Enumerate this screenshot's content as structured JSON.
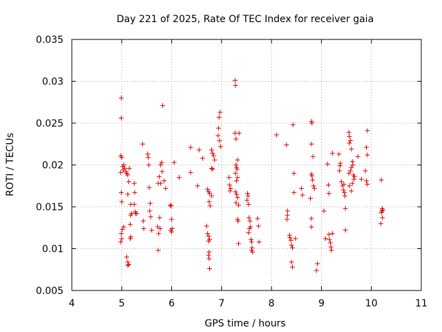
{
  "chart_data": {
    "type": "scatter",
    "title": "Day 221 of 2025, Rate Of TEC Index for receiver gaia",
    "xlabel": "GPS time / hours",
    "ylabel": "ROTI / TECUs",
    "xlim": [
      4,
      11
    ],
    "ylim": [
      0.005,
      0.035
    ],
    "xticks": [
      "4",
      "5",
      "6",
      "7",
      "8",
      "9",
      "10",
      "11"
    ],
    "yticks": [
      "0.005",
      "0.01",
      "0.015",
      "0.02",
      "0.025",
      "0.03",
      "0.035"
    ],
    "grid": true,
    "marker": "+",
    "color": "#e00000",
    "grid_color": "#a0a0a0",
    "points": [
      [
        4.99,
        0.028
      ],
      [
        4.99,
        0.0256
      ],
      [
        4.98,
        0.0211
      ],
      [
        5.0,
        0.0209
      ],
      [
        5.02,
        0.0198
      ],
      [
        5.04,
        0.02
      ],
      [
        5.06,
        0.0196
      ],
      [
        5.03,
        0.0194
      ],
      [
        5.08,
        0.0192
      ],
      [
        5.1,
        0.019
      ],
      [
        4.98,
        0.0191
      ],
      [
        5.12,
        0.0188
      ],
      [
        4.99,
        0.0167
      ],
      [
        5.0,
        0.0156
      ],
      [
        5.04,
        0.0126
      ],
      [
        5.01,
        0.0123
      ],
      [
        4.99,
        0.0118
      ],
      [
        5.0,
        0.0112
      ],
      [
        4.98,
        0.0108
      ],
      [
        5.1,
        0.009
      ],
      [
        5.12,
        0.0084
      ],
      [
        5.14,
        0.0081
      ],
      [
        5.12,
        0.008
      ],
      [
        5.15,
        0.0196
      ],
      [
        5.14,
        0.018
      ],
      [
        5.12,
        0.0165
      ],
      [
        5.18,
        0.0153
      ],
      [
        5.2,
        0.0142
      ],
      [
        5.18,
        0.014
      ],
      [
        5.17,
        0.0129
      ],
      [
        5.18,
        0.0114
      ],
      [
        5.17,
        0.0112
      ],
      [
        5.25,
        0.0178
      ],
      [
        5.26,
        0.0167
      ],
      [
        5.25,
        0.0153
      ],
      [
        5.27,
        0.0144
      ],
      [
        5.28,
        0.0142
      ],
      [
        5.3,
        0.0142
      ],
      [
        5.42,
        0.0225
      ],
      [
        5.52,
        0.0213
      ],
      [
        5.53,
        0.0209
      ],
      [
        5.54,
        0.02
      ],
      [
        5.55,
        0.0173
      ],
      [
        5.57,
        0.0154
      ],
      [
        5.56,
        0.0145
      ],
      [
        5.58,
        0.0138
      ],
      [
        5.6,
        0.0122
      ],
      [
        5.43,
        0.0133
      ],
      [
        5.44,
        0.0124
      ],
      [
        5.82,
        0.0271
      ],
      [
        5.8,
        0.0203
      ],
      [
        5.78,
        0.02
      ],
      [
        5.81,
        0.0192
      ],
      [
        5.75,
        0.0186
      ],
      [
        5.85,
        0.0181
      ],
      [
        5.78,
        0.0178
      ],
      [
        5.73,
        0.0178
      ],
      [
        5.88,
        0.0172
      ],
      [
        5.76,
        0.0137
      ],
      [
        5.72,
        0.0126
      ],
      [
        5.77,
        0.0124
      ],
      [
        5.74,
        0.0118
      ],
      [
        5.73,
        0.0098
      ],
      [
        5.97,
        0.0152
      ],
      [
        5.99,
        0.0151
      ],
      [
        6.0,
        0.0135
      ],
      [
        6.01,
        0.0124
      ],
      [
        5.98,
        0.0122
      ],
      [
        6.0,
        0.012
      ],
      [
        6.05,
        0.0203
      ],
      [
        6.15,
        0.0185
      ],
      [
        6.38,
        0.0221
      ],
      [
        6.55,
        0.0218
      ],
      [
        6.38,
        0.0191
      ],
      [
        6.52,
        0.0175
      ],
      [
        6.62,
        0.0208
      ],
      [
        6.8,
        0.0218
      ],
      [
        6.82,
        0.0214
      ],
      [
        6.84,
        0.0211
      ],
      [
        6.86,
        0.0206
      ],
      [
        6.8,
        0.0196
      ],
      [
        6.82,
        0.0195
      ],
      [
        6.72,
        0.0171
      ],
      [
        6.74,
        0.0168
      ],
      [
        6.76,
        0.0166
      ],
      [
        6.8,
        0.0163
      ],
      [
        6.75,
        0.0156
      ],
      [
        6.77,
        0.0151
      ],
      [
        6.7,
        0.0127
      ],
      [
        6.72,
        0.0118
      ],
      [
        6.74,
        0.0115
      ],
      [
        6.76,
        0.0111
      ],
      [
        6.74,
        0.0109
      ],
      [
        6.75,
        0.0096
      ],
      [
        6.74,
        0.0092
      ],
      [
        6.75,
        0.0088
      ],
      [
        6.76,
        0.0076
      ],
      [
        6.97,
        0.0263
      ],
      [
        6.95,
        0.0257
      ],
      [
        6.94,
        0.0244
      ],
      [
        6.93,
        0.0235
      ],
      [
        6.96,
        0.0229
      ],
      [
        6.98,
        0.0222
      ],
      [
        7.27,
        0.0301
      ],
      [
        7.28,
        0.0295
      ],
      [
        7.27,
        0.0238
      ],
      [
        7.35,
        0.0238
      ],
      [
        7.29,
        0.0231
      ],
      [
        7.32,
        0.0206
      ],
      [
        7.29,
        0.02
      ],
      [
        7.3,
        0.0197
      ],
      [
        7.31,
        0.0195
      ],
      [
        7.28,
        0.019
      ],
      [
        7.32,
        0.0185
      ],
      [
        7.3,
        0.0181
      ],
      [
        7.15,
        0.0185
      ],
      [
        7.16,
        0.0176
      ],
      [
        7.18,
        0.0172
      ],
      [
        7.17,
        0.0169
      ],
      [
        7.28,
        0.0168
      ],
      [
        7.3,
        0.0165
      ],
      [
        7.32,
        0.0161
      ],
      [
        7.29,
        0.0155
      ],
      [
        7.34,
        0.0152
      ],
      [
        7.32,
        0.0135
      ],
      [
        7.33,
        0.0133
      ],
      [
        7.34,
        0.0106
      ],
      [
        7.52,
        0.0166
      ],
      [
        7.53,
        0.0163
      ],
      [
        7.51,
        0.0158
      ],
      [
        7.54,
        0.0153
      ],
      [
        7.55,
        0.0137
      ],
      [
        7.57,
        0.0133
      ],
      [
        7.58,
        0.0126
      ],
      [
        7.56,
        0.0124
      ],
      [
        7.54,
        0.0119
      ],
      [
        7.59,
        0.0111
      ],
      [
        7.6,
        0.0108
      ],
      [
        7.61,
        0.0101
      ],
      [
        7.6,
        0.0098
      ],
      [
        7.62,
        0.0096
      ],
      [
        7.72,
        0.0136
      ],
      [
        7.74,
        0.0127
      ],
      [
        7.75,
        0.0108
      ],
      [
        8.1,
        0.0236
      ],
      [
        8.3,
        0.0224
      ],
      [
        8.43,
        0.0248
      ],
      [
        8.45,
        0.019
      ],
      [
        8.45,
        0.0167
      ],
      [
        8.6,
        0.0172
      ],
      [
        8.62,
        0.0164
      ],
      [
        8.32,
        0.0145
      ],
      [
        8.32,
        0.014
      ],
      [
        8.31,
        0.0135
      ],
      [
        8.36,
        0.0116
      ],
      [
        8.37,
        0.0113
      ],
      [
        8.39,
        0.011
      ],
      [
        8.4,
        0.0104
      ],
      [
        8.42,
        0.0101
      ],
      [
        8.48,
        0.0112
      ],
      [
        8.4,
        0.0084
      ],
      [
        8.42,
        0.0078
      ],
      [
        8.8,
        0.0252
      ],
      [
        8.81,
        0.025
      ],
      [
        8.8,
        0.0225
      ],
      [
        8.83,
        0.021
      ],
      [
        8.8,
        0.0189
      ],
      [
        8.81,
        0.0187
      ],
      [
        8.82,
        0.0182
      ],
      [
        8.84,
        0.0175
      ],
      [
        8.86,
        0.0172
      ],
      [
        8.78,
        0.016
      ],
      [
        8.8,
        0.0136
      ],
      [
        8.8,
        0.0126
      ],
      [
        8.92,
        0.0082
      ],
      [
        8.9,
        0.0074
      ],
      [
        9.12,
        0.0201
      ],
      [
        9.14,
        0.0176
      ],
      [
        9.15,
        0.0166
      ],
      [
        9.05,
        0.0145
      ],
      [
        9.08,
        0.0112
      ],
      [
        9.15,
        0.0117
      ],
      [
        9.16,
        0.0111
      ],
      [
        9.18,
        0.0107
      ],
      [
        9.19,
        0.0102
      ],
      [
        9.2,
        0.0098
      ],
      [
        9.22,
        0.0118
      ],
      [
        9.22,
        0.0214
      ],
      [
        9.35,
        0.0213
      ],
      [
        9.38,
        0.0202
      ],
      [
        9.37,
        0.0199
      ],
      [
        9.36,
        0.0193
      ],
      [
        9.4,
        0.018
      ],
      [
        9.45,
        0.0177
      ],
      [
        9.42,
        0.0175
      ],
      [
        9.44,
        0.017
      ],
      [
        9.46,
        0.0167
      ],
      [
        9.47,
        0.0163
      ],
      [
        9.48,
        0.0148
      ],
      [
        9.48,
        0.0122
      ],
      [
        9.55,
        0.0239
      ],
      [
        9.56,
        0.0234
      ],
      [
        9.58,
        0.0229
      ],
      [
        9.56,
        0.0226
      ],
      [
        9.6,
        0.0219
      ],
      [
        9.62,
        0.0204
      ],
      [
        9.63,
        0.02
      ],
      [
        9.6,
        0.0197
      ],
      [
        9.58,
        0.0193
      ],
      [
        9.55,
        0.019
      ],
      [
        9.64,
        0.0188
      ],
      [
        9.66,
        0.0186
      ],
      [
        9.65,
        0.0183
      ],
      [
        9.62,
        0.0178
      ],
      [
        9.56,
        0.0175
      ],
      [
        9.6,
        0.0169
      ],
      [
        9.73,
        0.021
      ],
      [
        9.92,
        0.0241
      ],
      [
        9.9,
        0.0221
      ],
      [
        9.92,
        0.0212
      ],
      [
        9.88,
        0.0193
      ],
      [
        9.9,
        0.0181
      ],
      [
        9.92,
        0.0177
      ],
      [
        9.8,
        0.0183
      ],
      [
        10.2,
        0.0182
      ],
      [
        10.22,
        0.0148
      ],
      [
        10.23,
        0.0146
      ],
      [
        10.21,
        0.0145
      ],
      [
        10.2,
        0.0143
      ],
      [
        10.22,
        0.0137
      ],
      [
        10.19,
        0.013
      ]
    ]
  }
}
